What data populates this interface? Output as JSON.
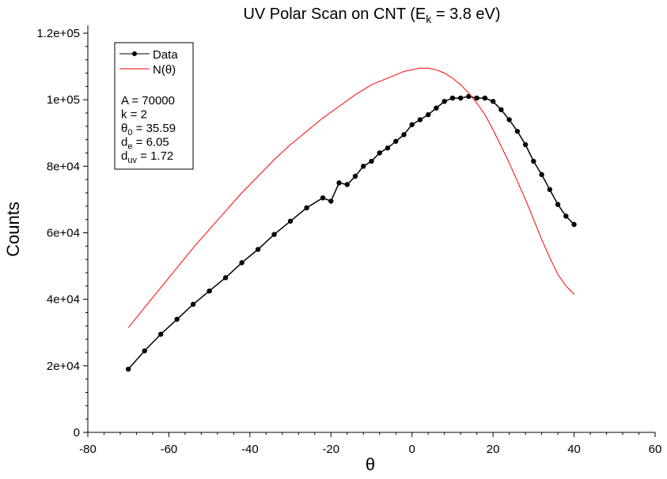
{
  "chart_data": {
    "type": "scatter",
    "title": {
      "main": "UV Polar Scan on CNT (E",
      "sub": "k",
      "tail": " = 3.8 eV)"
    },
    "xlabel": "θ",
    "ylabel": "Counts",
    "xlim": [
      -80,
      60
    ],
    "ylim": [
      0,
      120000
    ],
    "xticks": [
      -80,
      -60,
      -40,
      -20,
      0,
      20,
      40,
      60
    ],
    "xtick_labels": [
      "-80",
      "-60",
      "-40",
      "-20",
      "0",
      "20",
      "40",
      "60"
    ],
    "yticks": [
      0,
      20000,
      40000,
      60000,
      80000,
      100000,
      120000
    ],
    "ytick_labels": [
      "0",
      "2e+04",
      "4e+04",
      "6e+04",
      "8e+04",
      "1e+05",
      "1.2e+05"
    ],
    "grid": false,
    "legend_position": "top-left",
    "series": [
      {
        "name": "Data",
        "style": "line-markers",
        "color": "#000000",
        "x": [
          -70,
          -66,
          -62,
          -58,
          -54,
          -50,
          -46,
          -42,
          -38,
          -34,
          -30,
          -26,
          -22,
          -20,
          -18,
          -16,
          -14,
          -12,
          -10,
          -8,
          -6,
          -4,
          -2,
          0,
          2,
          4,
          6,
          8,
          10,
          12,
          14,
          16,
          18,
          20,
          22,
          24,
          26,
          28,
          30,
          32,
          34,
          36,
          38,
          40
        ],
        "y": [
          19000,
          24500,
          29500,
          34000,
          38500,
          42500,
          46500,
          51000,
          55000,
          59500,
          63500,
          67500,
          70500,
          69500,
          75000,
          74500,
          77000,
          80000,
          81500,
          84000,
          85500,
          87500,
          89500,
          92500,
          94000,
          95500,
          97500,
          99500,
          100500,
          100500,
          101000,
          100500,
          100500,
          99500,
          97000,
          94000,
          90500,
          86500,
          81500,
          77500,
          73000,
          68500,
          65000,
          62500
        ]
      },
      {
        "name": "N(θ)",
        "style": "line",
        "color": "#ff0000",
        "x": [
          -70,
          -66,
          -62,
          -58,
          -54,
          -50,
          -46,
          -42,
          -38,
          -34,
          -30,
          -26,
          -22,
          -18,
          -14,
          -10,
          -6,
          -2,
          0,
          2,
          4,
          6,
          8,
          10,
          12,
          14,
          16,
          18,
          20,
          22,
          24,
          26,
          28,
          30,
          32,
          34,
          36,
          38,
          40
        ],
        "y": [
          31500,
          37500,
          43500,
          49500,
          55500,
          61000,
          66500,
          72000,
          77000,
          82000,
          86500,
          90500,
          94500,
          98000,
          101500,
          104500,
          106500,
          108500,
          109000,
          109500,
          109500,
          109000,
          108000,
          106500,
          104500,
          102000,
          99000,
          95500,
          91000,
          86000,
          81000,
          75500,
          70000,
          64000,
          58000,
          52500,
          47500,
          44000,
          41500
        ]
      }
    ],
    "annotation": {
      "lines": [
        {
          "prefix": "A = 70000",
          "sub": "",
          "suffix": ""
        },
        {
          "prefix": "k = 2",
          "sub": "",
          "suffix": ""
        },
        {
          "prefix": "θ",
          "sub": "0",
          "suffix": " = 35.59"
        },
        {
          "prefix": "d",
          "sub": "e",
          "suffix": " = 6.05"
        },
        {
          "prefix": "d",
          "sub": "uv",
          "suffix": " = 1.72"
        }
      ]
    }
  }
}
